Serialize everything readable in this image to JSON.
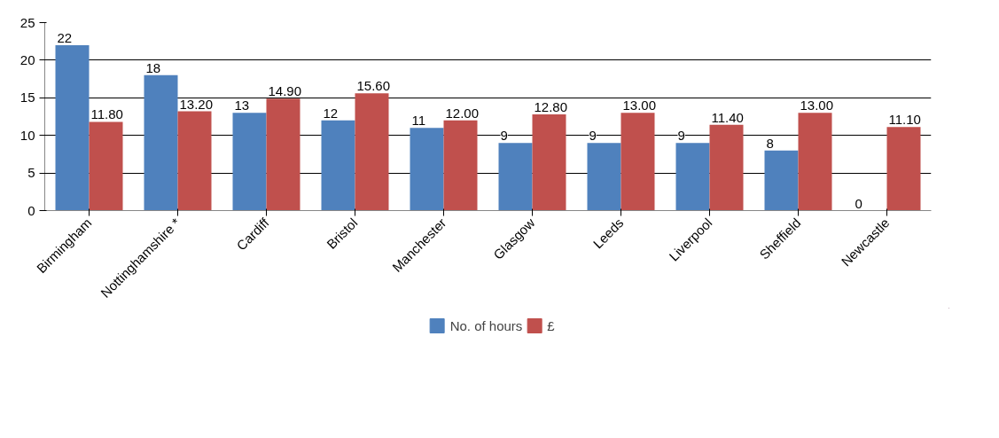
{
  "chart_data": {
    "type": "bar",
    "categories": [
      "Birmingham",
      "Nottinghamshire *",
      "Cardiff",
      "Bristol",
      "Manchester",
      "Glasgow",
      "Leeds",
      "Liverpool",
      "Sheffield",
      "Newcastle"
    ],
    "series": [
      {
        "name": "No. of hours",
        "color": "#4f81bd",
        "values": [
          22,
          18,
          13,
          12,
          11,
          9,
          9,
          9,
          8,
          0
        ],
        "value_labels": [
          "22",
          "18",
          "13",
          "12",
          "11",
          "9",
          "9",
          "9",
          "8",
          "0"
        ]
      },
      {
        "name": "£",
        "color": "#c0504d",
        "values": [
          11.8,
          13.2,
          14.9,
          15.6,
          12.0,
          12.8,
          13.0,
          11.4,
          13.0,
          11.1
        ],
        "value_labels": [
          "11.80",
          "13.20",
          "14.90",
          "15.60",
          "12.00",
          "12.80",
          "13.00",
          "11.40",
          "13.00",
          "11.10"
        ]
      }
    ],
    "ylim": [
      0,
      25
    ],
    "yticks": [
      0,
      5,
      10,
      15,
      20,
      25
    ],
    "grid": "y",
    "legend": "bottom"
  }
}
